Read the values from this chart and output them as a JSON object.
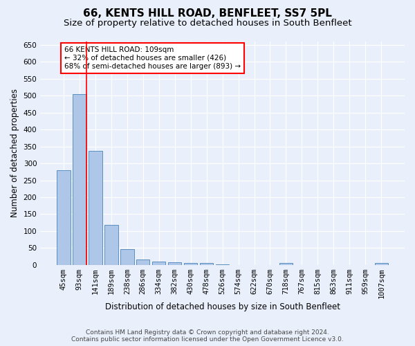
{
  "title": "66, KENTS HILL ROAD, BENFLEET, SS7 5PL",
  "subtitle": "Size of property relative to detached houses in South Benfleet",
  "xlabel": "Distribution of detached houses by size in South Benfleet",
  "ylabel": "Number of detached properties",
  "categories": [
    "45sqm",
    "93sqm",
    "141sqm",
    "189sqm",
    "238sqm",
    "286sqm",
    "334sqm",
    "382sqm",
    "430sqm",
    "478sqm",
    "526sqm",
    "574sqm",
    "622sqm",
    "670sqm",
    "718sqm",
    "767sqm",
    "815sqm",
    "863sqm",
    "911sqm",
    "959sqm",
    "1007sqm"
  ],
  "values": [
    280,
    505,
    338,
    118,
    46,
    16,
    10,
    8,
    5,
    5,
    1,
    0,
    0,
    0,
    5,
    0,
    0,
    0,
    0,
    0,
    5
  ],
  "bar_color": "#aec6e8",
  "bar_edge_color": "#5a8fc0",
  "red_line_bar_index": 1,
  "annotation_text": "66 KENTS HILL ROAD: 109sqm\n← 32% of detached houses are smaller (426)\n68% of semi-detached houses are larger (893) →",
  "annotation_box_color": "white",
  "annotation_box_edge": "red",
  "ylim": [
    0,
    660
  ],
  "yticks": [
    0,
    50,
    100,
    150,
    200,
    250,
    300,
    350,
    400,
    450,
    500,
    550,
    600,
    650
  ],
  "footer1": "Contains HM Land Registry data © Crown copyright and database right 2024.",
  "footer2": "Contains public sector information licensed under the Open Government Licence v3.0.",
  "background_color": "#eaf0fb",
  "plot_bg_color": "#eaf0fb",
  "title_fontsize": 11,
  "subtitle_fontsize": 9.5,
  "tick_fontsize": 7.5,
  "xlabel_fontsize": 8.5,
  "ylabel_fontsize": 8.5,
  "footer_fontsize": 6.5
}
